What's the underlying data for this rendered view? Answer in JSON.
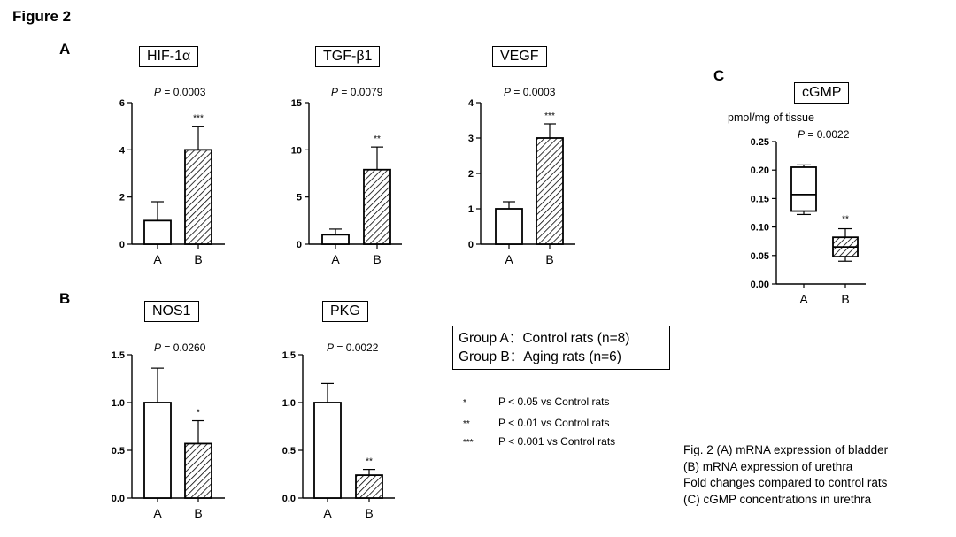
{
  "figure_title": "Figure 2",
  "panel_labels": {
    "a": "A",
    "b": "B",
    "c": "C"
  },
  "group_legend": {
    "line1": "Group A：Control rats (n=8)",
    "line2": "Group B：Aging rats (n=6)"
  },
  "significance_legend": [
    {
      "stars": "*",
      "text": "P < 0.05 vs Control rats"
    },
    {
      "stars": "**",
      "text": "P < 0.01 vs Control rats"
    },
    {
      "stars": "***",
      "text": "P < 0.001 vs Control rats"
    }
  ],
  "caption": {
    "line1": "Fig. 2 (A) mRNA expression of bladder",
    "line2": "(B) mRNA expression of urethra",
    "line3": "Fold changes compared to control rats",
    "line4": "(C) cGMP concentrations in urethra"
  },
  "colors": {
    "axis": "#000000",
    "bar_fill": "#ffffff",
    "hatch": "#000000"
  },
  "chart_data": [
    {
      "type": "bar",
      "title": "HIF-1α",
      "p_label": "P",
      "p_value": "= 0.0003",
      "categories": [
        "A",
        "B"
      ],
      "values": [
        1.0,
        4.0
      ],
      "errors": [
        0.8,
        1.0
      ],
      "hatched": [
        false,
        true
      ],
      "significance": [
        "",
        "***"
      ],
      "ylim": [
        0,
        6
      ],
      "yticks": [
        0,
        2,
        4,
        6
      ],
      "ytick_labels": [
        "0",
        "2",
        "4",
        "6"
      ]
    },
    {
      "type": "bar",
      "title": "TGF-β1",
      "p_label": "P",
      "p_value": "= 0.0079",
      "categories": [
        "A",
        "B"
      ],
      "values": [
        1.0,
        7.9
      ],
      "errors": [
        0.6,
        2.4
      ],
      "hatched": [
        false,
        true
      ],
      "significance": [
        "",
        "**"
      ],
      "ylim": [
        0,
        15
      ],
      "yticks": [
        0,
        5,
        10,
        15
      ],
      "ytick_labels": [
        "0",
        "5",
        "10",
        "15"
      ]
    },
    {
      "type": "bar",
      "title": "VEGF",
      "p_label": "P",
      "p_value": "= 0.0003",
      "categories": [
        "A",
        "B"
      ],
      "values": [
        1.0,
        3.0
      ],
      "errors": [
        0.2,
        0.4
      ],
      "hatched": [
        false,
        true
      ],
      "significance": [
        "",
        "***"
      ],
      "ylim": [
        0,
        4
      ],
      "yticks": [
        0,
        1,
        2,
        3,
        4
      ],
      "ytick_labels": [
        "0",
        "1",
        "2",
        "3",
        "4"
      ]
    },
    {
      "type": "bar",
      "title": "NOS1",
      "p_label": "P",
      "p_value": "= 0.0260",
      "categories": [
        "A",
        "B"
      ],
      "values": [
        1.0,
        0.57
      ],
      "errors": [
        0.36,
        0.24
      ],
      "hatched": [
        false,
        true
      ],
      "significance": [
        "",
        "*"
      ],
      "ylim": [
        0,
        1.5
      ],
      "yticks": [
        0,
        0.5,
        1.0,
        1.5
      ],
      "ytick_labels": [
        "0.0",
        "0.5",
        "1.0",
        "1.5"
      ]
    },
    {
      "type": "bar",
      "title": "PKG",
      "p_label": "P",
      "p_value": "= 0.0022",
      "categories": [
        "A",
        "B"
      ],
      "values": [
        1.0,
        0.24
      ],
      "errors": [
        0.2,
        0.06
      ],
      "hatched": [
        false,
        true
      ],
      "significance": [
        "",
        "**"
      ],
      "ylim": [
        0,
        1.5
      ],
      "yticks": [
        0,
        0.5,
        1.0,
        1.5
      ],
      "ytick_labels": [
        "0.0",
        "0.5",
        "1.0",
        "1.5"
      ]
    },
    {
      "type": "box",
      "title": "cGMP",
      "ylabel": "pmol/mg of tissue",
      "p_label": "P",
      "p_value": "= 0.0022",
      "categories": [
        "A",
        "B"
      ],
      "boxes": [
        {
          "min": 0.122,
          "q1": 0.128,
          "median": 0.157,
          "q3": 0.205,
          "max": 0.209
        },
        {
          "min": 0.04,
          "q1": 0.048,
          "median": 0.065,
          "q3": 0.082,
          "max": 0.097
        }
      ],
      "hatched": [
        false,
        true
      ],
      "significance": [
        "",
        "**"
      ],
      "ylim": [
        0,
        0.25
      ],
      "yticks": [
        0,
        0.05,
        0.1,
        0.15,
        0.2,
        0.25
      ],
      "ytick_labels": [
        "0.00",
        "0.05",
        "0.10",
        "0.15",
        "0.20",
        "0.25"
      ]
    }
  ]
}
